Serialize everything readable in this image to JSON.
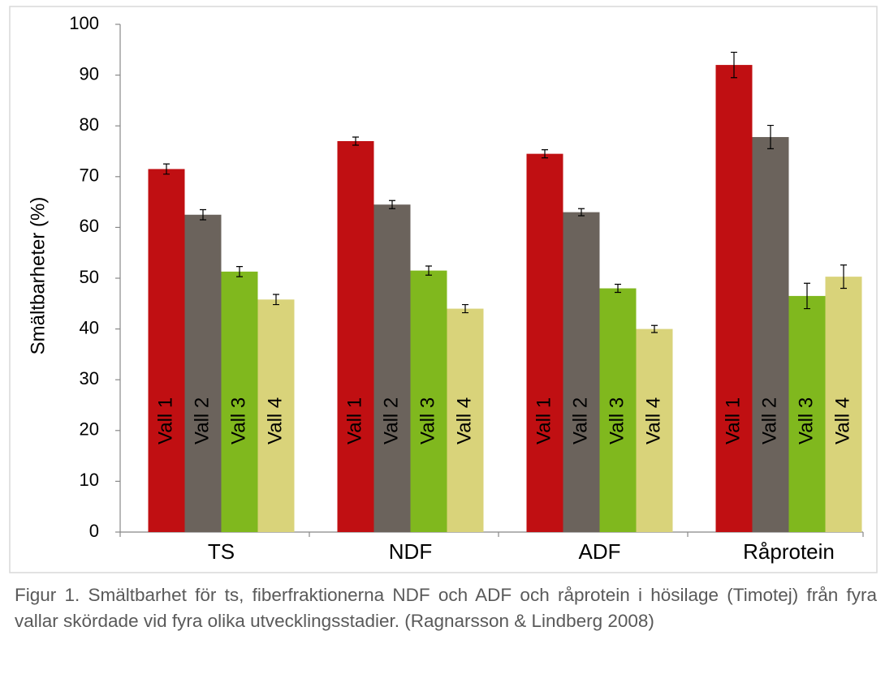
{
  "chart_data": {
    "type": "bar",
    "ylabel": "Smältbarheter (%)",
    "categories": [
      "TS",
      "NDF",
      "ADF",
      "Råprotein"
    ],
    "series": [
      {
        "name": "Vall 1",
        "color": "#c00f12",
        "values": [
          71.5,
          77,
          74.5,
          92
        ],
        "errors": [
          1,
          0.8,
          0.8,
          2.5
        ]
      },
      {
        "name": "Vall 2",
        "color": "#6b635c",
        "values": [
          62.5,
          64.5,
          63,
          77.8
        ],
        "errors": [
          1,
          0.8,
          0.7,
          2.3
        ]
      },
      {
        "name": "Vall 3",
        "color": "#80b81e",
        "values": [
          51.3,
          51.5,
          48,
          46.5
        ],
        "errors": [
          1,
          0.9,
          0.8,
          2.5
        ]
      },
      {
        "name": "Vall 4",
        "color": "#d9d37a",
        "values": [
          45.8,
          44,
          40,
          50.3
        ],
        "errors": [
          1,
          0.8,
          0.7,
          2.3
        ]
      }
    ],
    "ylim": [
      0,
      100
    ],
    "yticks": [
      0,
      10,
      20,
      30,
      40,
      50,
      60,
      70,
      80,
      90,
      100
    ],
    "caption": "Figur 1. Smältbarhet för ts, fiberfraktionerna NDF och ADF och råprotein i hösilage (Timotej) från fyra vallar skördade vid fyra olika utvecklingsstadier. (Ragnarsson & Lindberg 2008)"
  }
}
